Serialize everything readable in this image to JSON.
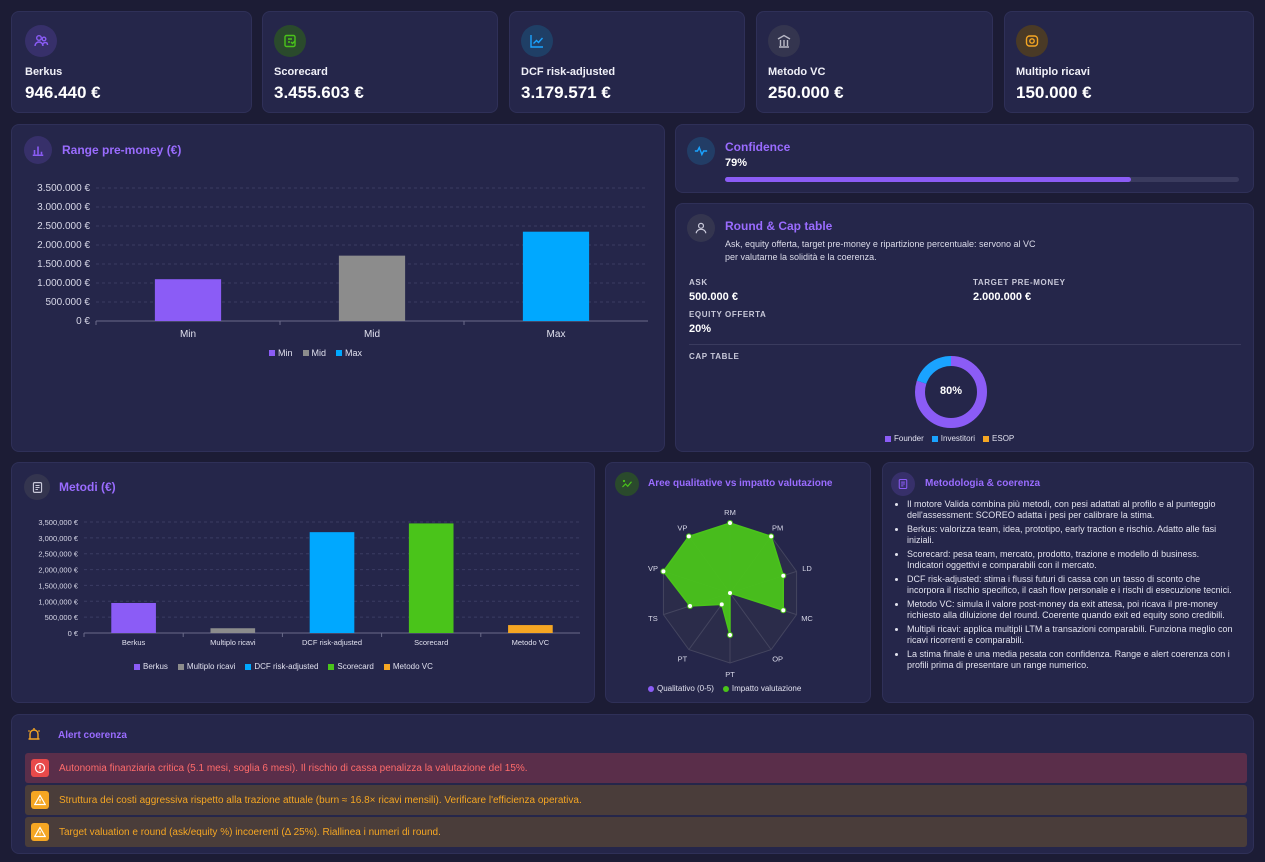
{
  "kpis": [
    {
      "label": "Berkus",
      "value": "946.440 €",
      "icon": "users-icon",
      "color": "#8b5cf6"
    },
    {
      "label": "Scorecard",
      "value": "3.455.603 €",
      "icon": "scorecard-icon",
      "color": "#4ac41a"
    },
    {
      "label": "DCF risk-adjusted",
      "value": "3.179.571 €",
      "icon": "line-chart-icon",
      "color": "#1aa3ff"
    },
    {
      "label": "Metodo VC",
      "value": "250.000 €",
      "icon": "bank-icon",
      "color": "#9a9aa8"
    },
    {
      "label": "Multiplo ricavi",
      "value": "150.000 €",
      "icon": "coin-icon",
      "color": "#f5a623"
    }
  ],
  "range": {
    "title": "Range pre-money (€)",
    "legend": [
      "Min",
      "Mid",
      "Max"
    ]
  },
  "confidence": {
    "title": "Confidence",
    "value_label": "79%",
    "value": 79
  },
  "round": {
    "title": "Round & Cap table",
    "description_line1": "Ask, equity offerta, target pre-money e ripartizione percentuale: servono al VC",
    "description_line2": "per valutarne la solidità e la coerenza.",
    "ask_label": "ASK",
    "ask_value": "500.000 €",
    "target_label": "TARGET PRE-MONEY",
    "target_value": "2.000.000 €",
    "equity_label": "EQUITY OFFERTA",
    "equity_value": "20%",
    "cap_label": "CAP TABLE",
    "donut_label": "80%",
    "donut_shares": [
      80,
      20,
      0
    ],
    "legend": [
      "Founder",
      "Investitori",
      "ESOP"
    ]
  },
  "metodi": {
    "title": "Metodi (€)",
    "legend": [
      "Berkus",
      "Multiplo ricavi",
      "DCF risk-adjusted",
      "Scorecard",
      "Metodo VC"
    ]
  },
  "radar": {
    "title": "Aree qualitative vs impatto valutazione",
    "legend": [
      "Qualitativo (0-5)",
      "Impatto valutazione"
    ]
  },
  "methodology": {
    "title": "Metodologia & coerenza",
    "items": [
      "Il motore Valida combina più metodi, con pesi adattati al profilo e al punteggio dell'assessment: SCOREO adatta i pesi per calibrare la stima.",
      "Berkus: valorizza team, idea, prototipo, early traction e rischio. Adatto alle fasi iniziali.",
      "Scorecard: pesa team, mercato, prodotto, trazione e modello di business. Indicatori oggettivi e comparabili con il mercato.",
      "DCF risk-adjusted: stima i flussi futuri di cassa con un tasso di sconto che incorpora il rischio specifico, il cash flow personale e i rischi di esecuzione tecnici.",
      "Metodo VC: simula il valore post-money da exit attesa, poi ricava il pre-money richiesto alla diluizione del round. Coerente quando exit ed equity sono credibili.",
      "Multipli ricavi: applica multipli LTM a transazioni comparabili. Funziona meglio con ricavi ricorrenti e comparabili.",
      "La stima finale è una media pesata con confidenza. Range e alert coerenza con i profili prima di presentare un range numerico."
    ]
  },
  "alerts": {
    "title": "Alert coerenza",
    "items": [
      {
        "text": "Autonomia finanziaria critica (5.1 mesi, soglia 6 mesi). Il rischio di cassa penalizza la valutazione del 15%.",
        "level": "critical"
      },
      {
        "text": "Struttura dei costi aggressiva rispetto alla trazione attuale (burn ≈ 16.8× ricavi mensili). Verificare l'efficienza operativa.",
        "level": "warning"
      },
      {
        "text": "Target valuation e round (ask/equity %) incoerenti (Δ 25%). Riallinea i numeri di round.",
        "level": "warning"
      }
    ]
  },
  "chart_data": [
    {
      "type": "bar",
      "title": "Range pre-money (€)",
      "categories": [
        "Min",
        "Mid",
        "Max"
      ],
      "values": [
        1100000,
        1720000,
        2350000
      ],
      "colors": [
        "#8b5cf6",
        "#8c8c8c",
        "#00a8ff"
      ],
      "yticks": [
        "3.500.000 €",
        "3.000.000 €",
        "2.500.000 €",
        "2.000.000 €",
        "1.500.000 €",
        "1.000.000 €",
        "500.000 €",
        "0 €"
      ],
      "ylim": [
        0,
        3500000
      ],
      "legend": "bottom"
    },
    {
      "type": "bar",
      "title": "Metodi (€)",
      "categories": [
        "Berkus",
        "Multiplo ricavi",
        "DCF risk-adjusted",
        "Scorecard",
        "Metodo VC"
      ],
      "values": [
        946440,
        150000,
        3179571,
        3455603,
        250000
      ],
      "colors": [
        "#8b5cf6",
        "#8c8c8c",
        "#00a8ff",
        "#4ac41a",
        "#f5a623"
      ],
      "yticks": [
        "3,500,000 €",
        "3,000,000 €",
        "2,500,000 €",
        "2,000,000 €",
        "1,500,000 €",
        "1,000,000 €",
        "500,000 €",
        "0 €"
      ],
      "ylim": [
        0,
        3500000
      ],
      "legend": "bottom"
    },
    {
      "type": "radar",
      "title": "Aree qualitative vs impatto valutazione",
      "axes": [
        "RM",
        "PM",
        "LD",
        "MC",
        "OP",
        "PT",
        "PT",
        "TS",
        "VP",
        "VP"
      ],
      "series": [
        {
          "name": "Qualitativo (0-5)",
          "values": [
            0,
            0,
            0,
            0,
            0,
            0,
            0,
            0,
            0,
            0
          ]
        },
        {
          "name": "Impatto valutazione",
          "values": [
            5,
            5,
            4,
            4,
            0,
            3,
            1,
            3,
            5,
            5
          ]
        }
      ],
      "rmax": 5,
      "legend": "bottom"
    }
  ]
}
